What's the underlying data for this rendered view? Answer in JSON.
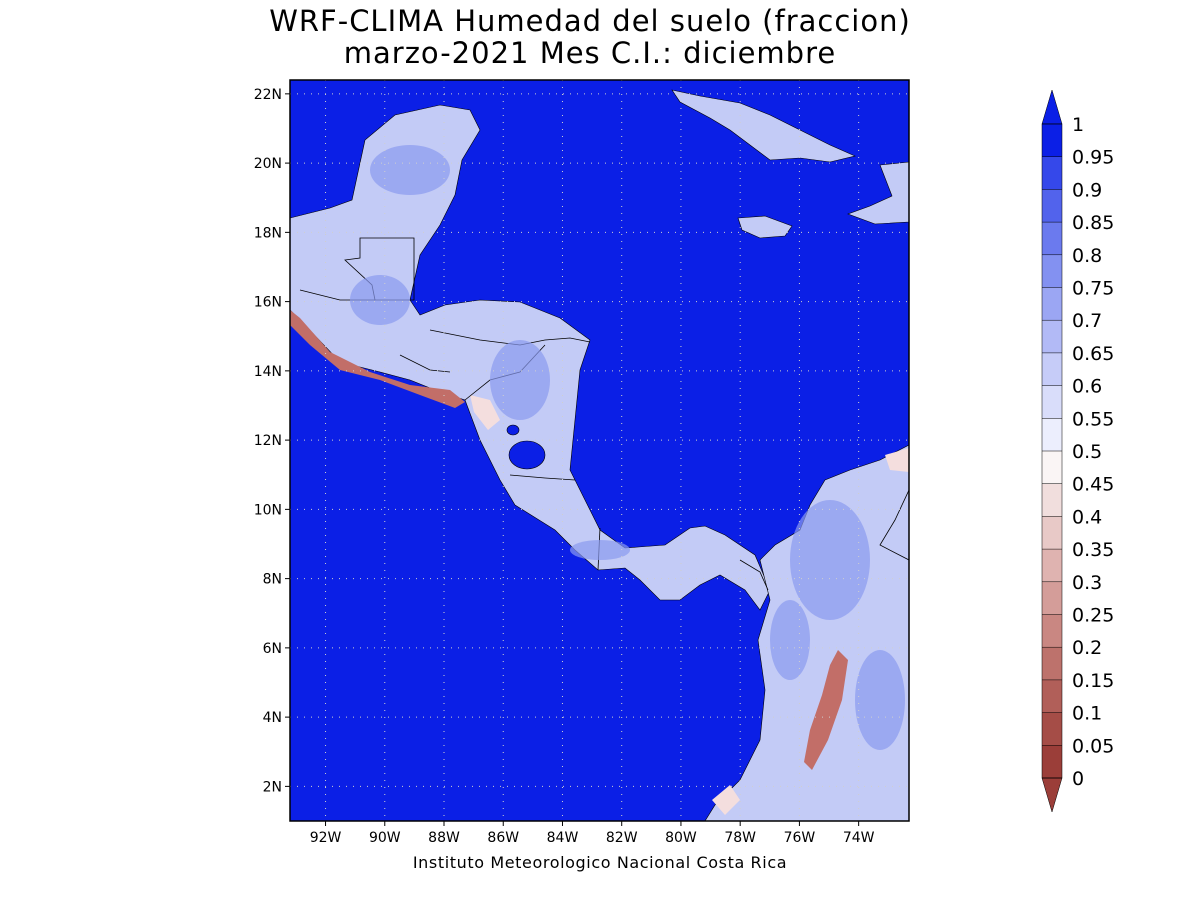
{
  "title": "WRF-CLIMA Humedad del suelo (fraccion)",
  "subtitle": "marzo-2021 Mes C.I.: diciembre",
  "credit": "Instituto Meteorologico Nacional Costa Rica",
  "map": {
    "lon_range": [
      -93.2,
      -72.3
    ],
    "lat_range": [
      1.0,
      22.4
    ],
    "lon_ticks": [
      "92W",
      "90W",
      "88W",
      "86W",
      "84W",
      "82W",
      "80W",
      "78W",
      "76W",
      "74W"
    ],
    "lon_tick_values": [
      -92,
      -90,
      -88,
      -86,
      -84,
      -82,
      -80,
      -78,
      -76,
      -74
    ],
    "lat_ticks": [
      "2N",
      "4N",
      "6N",
      "8N",
      "10N",
      "12N",
      "14N",
      "16N",
      "18N",
      "20N",
      "22N"
    ],
    "lat_tick_values": [
      2,
      4,
      6,
      8,
      10,
      12,
      14,
      16,
      18,
      20,
      22
    ],
    "grid": "dotted",
    "ocean_value": 1.0,
    "colors": {
      "ocean": "#0b1fe6",
      "land_wet": "#8a9af0",
      "land_moist": "#c3cbf6",
      "land_dry": "#f4dede",
      "land_arid": "#c26e68"
    }
  },
  "colorbar": {
    "labels": [
      "1",
      "0.95",
      "0.9",
      "0.85",
      "0.8",
      "0.75",
      "0.7",
      "0.65",
      "0.6",
      "0.55",
      "0.5",
      "0.45",
      "0.4",
      "0.35",
      "0.3",
      "0.25",
      "0.2",
      "0.15",
      "0.1",
      "0.05",
      "0"
    ],
    "colors_top_to_bottom": [
      "#0b1fe6",
      "#3548ea",
      "#5263ec",
      "#6b7aee",
      "#8391f1",
      "#9ba6f3",
      "#b2baf6",
      "#c6ccf8",
      "#d9ddfa",
      "#eceefd",
      "#faf5f5",
      "#f1dedd",
      "#e8c9c7",
      "#dfb3b0",
      "#d49d99",
      "#c98782",
      "#bd726c",
      "#b15f59",
      "#a54d47",
      "#9b3e39"
    ],
    "overflow_max": "#0b1fe6",
    "overflow_min": "#9b3e39"
  }
}
